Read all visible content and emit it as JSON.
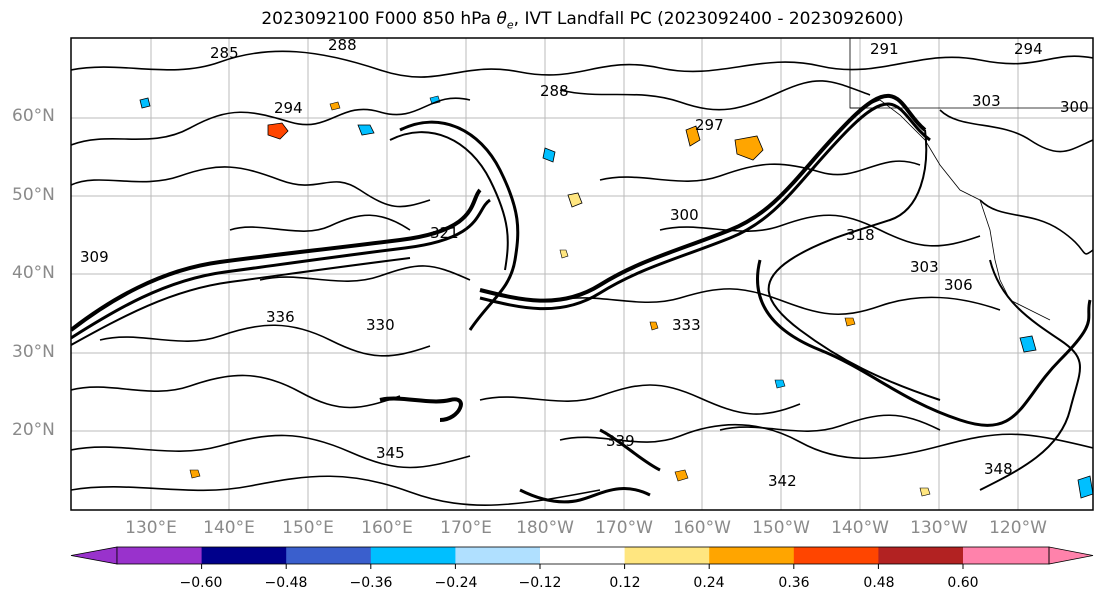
{
  "title": {
    "prefix": "2023092100 F000 850 hPa ",
    "theta_symbol": "θ",
    "theta_sub": "e",
    "suffix": ", IVT Landfall PC (2023092400 - 2023092600)"
  },
  "map": {
    "lat_labels": [
      "60°N",
      "50°N",
      "40°N",
      "30°N",
      "20°N"
    ],
    "lon_labels": [
      "130°E",
      "140°E",
      "150°E",
      "160°E",
      "170°E",
      "180°W",
      "170°W",
      "160°W",
      "150°W",
      "140°W",
      "130°W",
      "120°W"
    ],
    "contour_labels": [
      "285",
      "288",
      "294",
      "297",
      "300",
      "303",
      "306",
      "309",
      "318",
      "321",
      "330",
      "333",
      "336",
      "339",
      "342",
      "345",
      "348",
      "288",
      "291",
      "294",
      "300",
      "303"
    ],
    "fill_colors": {
      "positive_low": "#ffe680",
      "positive_mid": "#ffa500",
      "positive_high": "#ff4500",
      "negative_low": "#b0e0ff",
      "negative_mid": "#00bfff"
    }
  },
  "colorbar": {
    "tick_labels": [
      "−0.60",
      "−0.48",
      "−0.36",
      "−0.24",
      "−0.12",
      "0.12",
      "0.24",
      "0.36",
      "0.48",
      "0.60"
    ],
    "colors": [
      "#9932cc",
      "#00008b",
      "#3a5fcd",
      "#00bfff",
      "#b0e0ff",
      "#ffffff",
      "#ffe680",
      "#ffa500",
      "#ff4500",
      "#b22222",
      "#ff82ab",
      "#ff82ab"
    ]
  }
}
